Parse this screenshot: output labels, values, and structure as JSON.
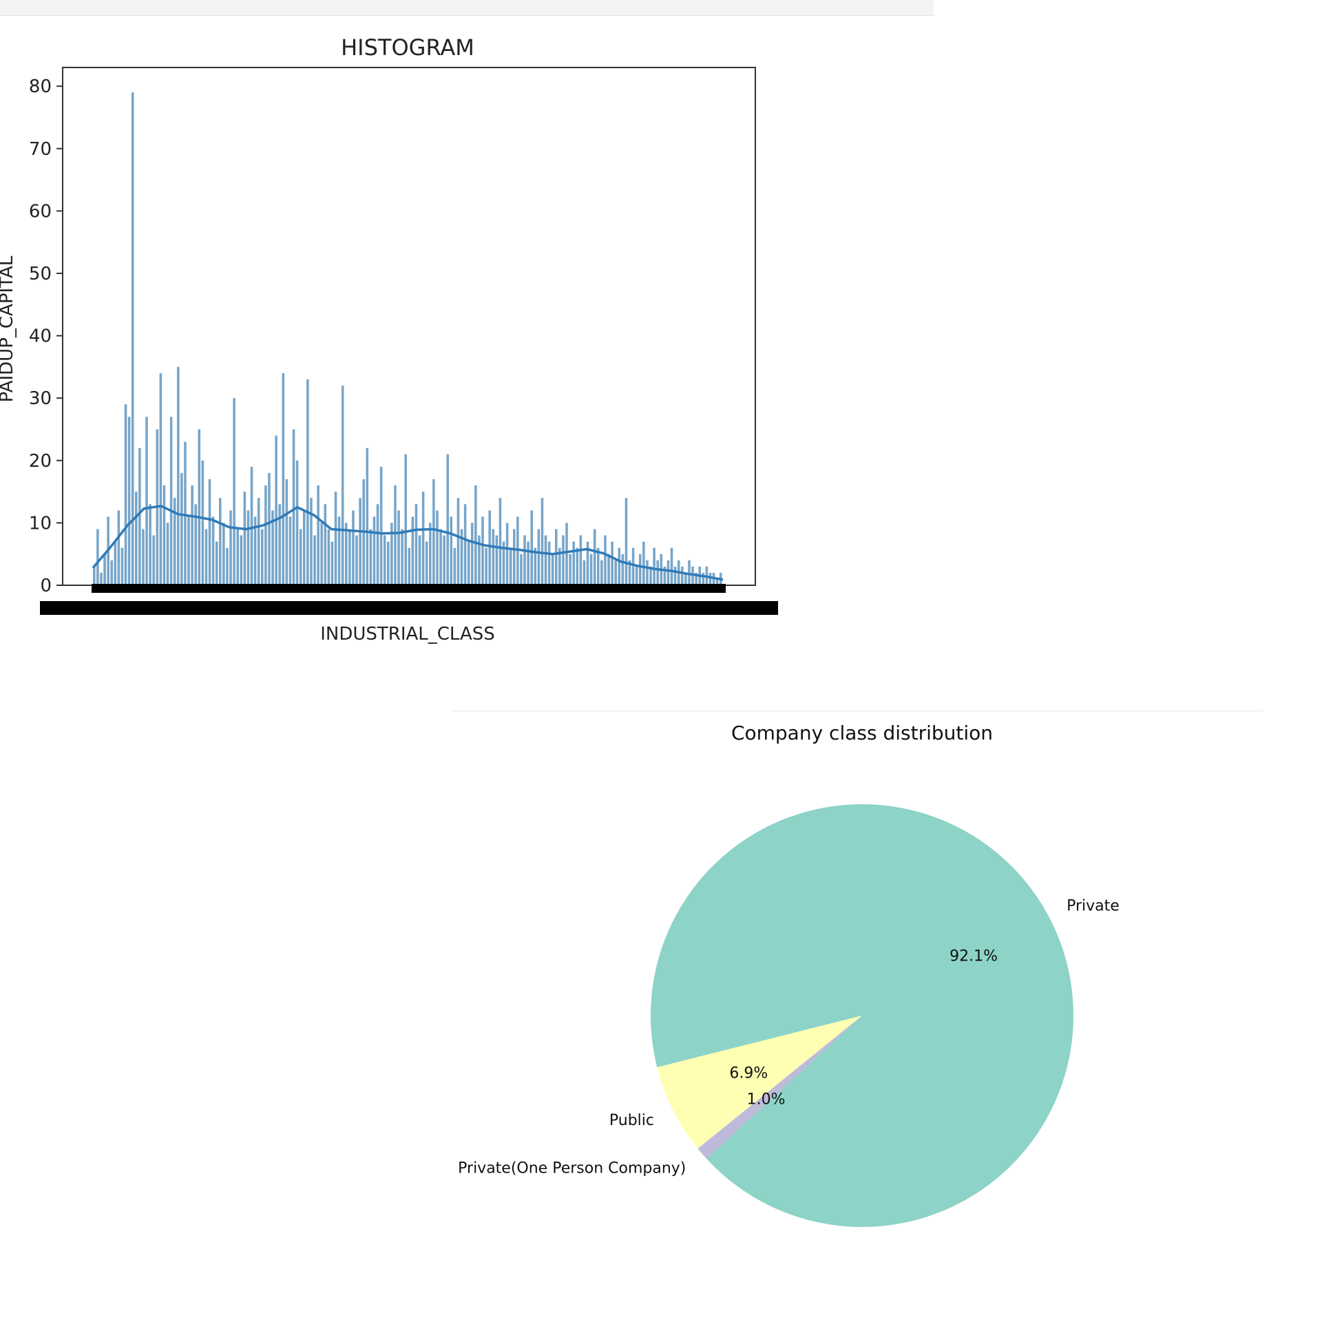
{
  "chart_data": [
    {
      "type": "bar",
      "title": "HISTOGRAM",
      "xlabel": "INDUSTRIAL_CLASS",
      "ylabel": "PAIDUP_CAPITAL",
      "ylim": [
        0,
        83
      ],
      "yticks": [
        "0",
        "10",
        "20",
        "30",
        "40",
        "50",
        "60",
        "70",
        "80"
      ],
      "bar_color": "#5f95c0",
      "kde_color": "#2f7ab8",
      "bar_values": [
        3,
        9,
        2,
        5,
        11,
        4,
        7,
        12,
        6,
        29,
        27,
        79,
        15,
        22,
        9,
        27,
        13,
        8,
        25,
        34,
        16,
        10,
        27,
        14,
        35,
        18,
        23,
        11,
        16,
        13,
        25,
        20,
        9,
        17,
        11,
        7,
        14,
        10,
        6,
        12,
        30,
        9,
        8,
        15,
        12,
        19,
        11,
        14,
        9,
        16,
        18,
        12,
        24,
        13,
        34,
        17,
        11,
        25,
        20,
        9,
        12,
        33,
        14,
        8,
        16,
        10,
        13,
        9,
        7,
        15,
        11,
        32,
        10,
        9,
        12,
        8,
        14,
        17,
        22,
        9,
        11,
        13,
        19,
        8,
        7,
        10,
        16,
        12,
        9,
        21,
        6,
        11,
        13,
        8,
        15,
        7,
        10,
        17,
        12,
        9,
        8,
        21,
        11,
        6,
        14,
        9,
        13,
        7,
        10,
        16,
        8,
        11,
        6,
        12,
        9,
        8,
        14,
        7,
        10,
        6,
        9,
        11,
        5,
        8,
        7,
        12,
        6,
        9,
        14,
        8,
        7,
        5,
        9,
        6,
        8,
        10,
        5,
        7,
        6,
        8,
        4,
        7,
        5,
        9,
        6,
        4,
        8,
        5,
        7,
        4,
        6,
        5,
        14,
        4,
        6,
        3,
        5,
        7,
        4,
        3,
        6,
        4,
        5,
        3,
        4,
        6,
        3,
        4,
        3,
        2,
        4,
        3,
        2,
        3,
        2,
        3,
        2,
        2,
        1,
        2
      ],
      "kde_values": [
        2.8,
        6.0,
        9.5,
        12.3,
        12.7,
        11.4,
        11.0,
        10.5,
        9.3,
        9.0,
        9.6,
        10.8,
        12.5,
        11.2,
        9.0,
        8.8,
        8.6,
        8.3,
        8.4,
        8.9,
        9.0,
        8.3,
        7.2,
        6.4,
        6.0,
        5.7,
        5.3,
        5.0,
        5.4,
        5.8,
        5.1,
        3.8,
        3.1,
        2.6,
        2.3,
        1.8,
        1.4,
        0.9
      ]
    },
    {
      "type": "pie",
      "title": "Company class distribution",
      "slices": [
        {
          "label": "Private",
          "value": 92.1,
          "pct_text": "92.1%",
          "color": "#8dd3c7"
        },
        {
          "label": "Public",
          "value": 6.9,
          "pct_text": "6.9%",
          "color": "#ffffb3"
        },
        {
          "label": "Private(One Person Company)",
          "value": 1.0,
          "pct_text": "1.0%",
          "color": "#bebada"
        }
      ]
    }
  ]
}
